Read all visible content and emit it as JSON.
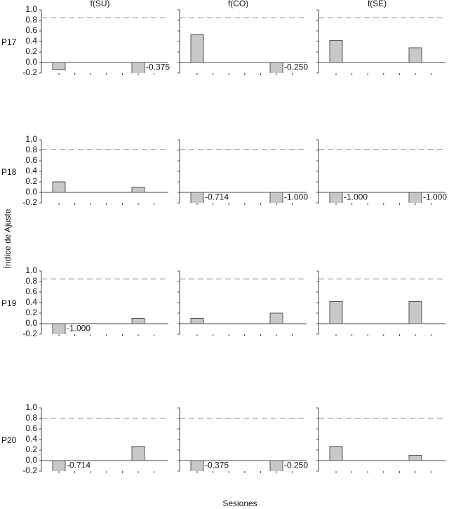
{
  "y_label": "Índice de Ajuste",
  "x_label": "Sesiones",
  "columns": [
    "f(SU)",
    "f(CO)",
    "f(SE)"
  ],
  "rows": [
    "P17",
    "P18",
    "P19",
    "P20"
  ],
  "chart_data": [
    {
      "type": "bar",
      "categories": [
        null,
        null
      ],
      "values": [
        -0.14,
        -0.375
      ],
      "value_labels": [
        null,
        "-0.375"
      ],
      "reference_line": 0.85,
      "color": "#c8c8c8",
      "ylim": [
        -0.2,
        1.0
      ],
      "yticks": [
        {
          "value": -0.2,
          "label": "-0.2"
        },
        {
          "value": 0,
          "label": "0.0"
        },
        0.2,
        0.4,
        0.6,
        0.8,
        {
          "value": 1,
          "label": "1.0"
        }
      ]
    },
    {
      "type": "bar",
      "categories": [
        null,
        null
      ],
      "values": [
        0.53,
        -0.25
      ],
      "value_labels": [
        null,
        "-0.250"
      ],
      "reference_line": 0.85,
      "color": "#c8c8c8",
      "ylim": [
        -0.2,
        1.0
      ],
      "yticks": [
        -0.2,
        0,
        0.2,
        0.4,
        0.6,
        0.8,
        1
      ]
    },
    {
      "type": "bar",
      "categories": [
        null,
        null
      ],
      "values": [
        0.42,
        0.28
      ],
      "value_labels": [
        null,
        null
      ],
      "reference_line": 0.85,
      "color": "#c8c8c8",
      "ylim": [
        -0.2,
        1.0
      ],
      "yticks": [
        -0.2,
        0,
        0.2,
        0.4,
        0.6,
        0.8,
        1
      ]
    },
    {
      "type": "bar",
      "categories": [
        null,
        null
      ],
      "values": [
        0.2,
        0.1
      ],
      "value_labels": [
        null,
        null
      ],
      "reference_line": 0.82,
      "color": "#c8c8c8",
      "ylim": [
        -0.2,
        1.0
      ],
      "yticks": [
        {
          "value": -0.2,
          "label": "-0.2"
        },
        {
          "value": 0,
          "label": "0.0"
        },
        0.2,
        0.4,
        0.6,
        0.8,
        {
          "value": 1,
          "label": "1.0"
        }
      ]
    },
    {
      "type": "bar",
      "categories": [
        null,
        null
      ],
      "values": [
        -0.714,
        -1.0
      ],
      "value_labels": [
        "-0.714",
        "-1.000"
      ],
      "reference_line": 0.82,
      "color": "#c8c8c8",
      "ylim": [
        -0.2,
        1.0
      ],
      "yticks": [
        -0.2,
        0,
        0.2,
        0.4,
        0.6,
        0.8,
        1
      ]
    },
    {
      "type": "bar",
      "categories": [
        null,
        null
      ],
      "values": [
        -1.0,
        -1.0
      ],
      "value_labels": [
        "-1.000",
        "-1.000"
      ],
      "reference_line": 0.82,
      "color": "#c8c8c8",
      "ylim": [
        -0.2,
        1.0
      ],
      "yticks": [
        -0.2,
        0,
        0.2,
        0.4,
        0.6,
        0.8,
        1
      ]
    },
    {
      "type": "bar",
      "categories": [
        null,
        null
      ],
      "values": [
        -1.0,
        0.1
      ],
      "value_labels": [
        "-1.000",
        null
      ],
      "reference_line": 0.85,
      "color": "#c8c8c8",
      "ylim": [
        -0.2,
        1.0
      ],
      "yticks": [
        {
          "value": -0.2,
          "label": "-0.2"
        },
        {
          "value": 0,
          "label": "0.0"
        },
        0.2,
        0.4,
        0.6,
        0.8,
        {
          "value": 1,
          "label": "1.0"
        }
      ]
    },
    {
      "type": "bar",
      "categories": [
        null,
        null
      ],
      "values": [
        0.1,
        0.2
      ],
      "value_labels": [
        null,
        null
      ],
      "reference_line": 0.85,
      "color": "#c8c8c8",
      "ylim": [
        -0.2,
        1.0
      ],
      "yticks": [
        -0.2,
        0,
        0.2,
        0.4,
        0.6,
        0.8,
        1
      ]
    },
    {
      "type": "bar",
      "categories": [
        null,
        null
      ],
      "values": [
        0.42,
        0.42
      ],
      "value_labels": [
        null,
        null
      ],
      "reference_line": 0.85,
      "color": "#c8c8c8",
      "ylim": [
        -0.2,
        1.0
      ],
      "yticks": [
        -0.2,
        0,
        0.2,
        0.4,
        0.6,
        0.8,
        1
      ]
    },
    {
      "type": "bar",
      "categories": [
        null,
        null
      ],
      "values": [
        -0.714,
        0.27
      ],
      "value_labels": [
        "-0.714",
        null
      ],
      "reference_line": 0.8,
      "color": "#c8c8c8",
      "ylim": [
        -0.2,
        1.0
      ],
      "yticks": [
        {
          "value": -0.2,
          "label": "-0.2"
        },
        {
          "value": 0,
          "label": "0.0"
        },
        0.2,
        0.4,
        0.6,
        0.8,
        {
          "value": 1,
          "label": "1.0"
        }
      ]
    },
    {
      "type": "bar",
      "categories": [
        null,
        null
      ],
      "values": [
        -0.375,
        -0.25
      ],
      "value_labels": [
        "-0.375",
        "-0.250"
      ],
      "reference_line": 0.8,
      "color": "#c8c8c8",
      "ylim": [
        -0.2,
        1.0
      ],
      "yticks": [
        -0.2,
        0,
        0.2,
        0.4,
        0.6,
        0.8,
        1
      ]
    },
    {
      "type": "bar",
      "categories": [
        null,
        null
      ],
      "values": [
        0.27,
        0.1
      ],
      "value_labels": [
        null,
        null
      ],
      "reference_line": 0.8,
      "color": "#c8c8c8",
      "ylim": [
        -0.2,
        1.0
      ],
      "yticks": [
        -0.2,
        0,
        0.2,
        0.4,
        0.6,
        0.8,
        1
      ]
    }
  ]
}
